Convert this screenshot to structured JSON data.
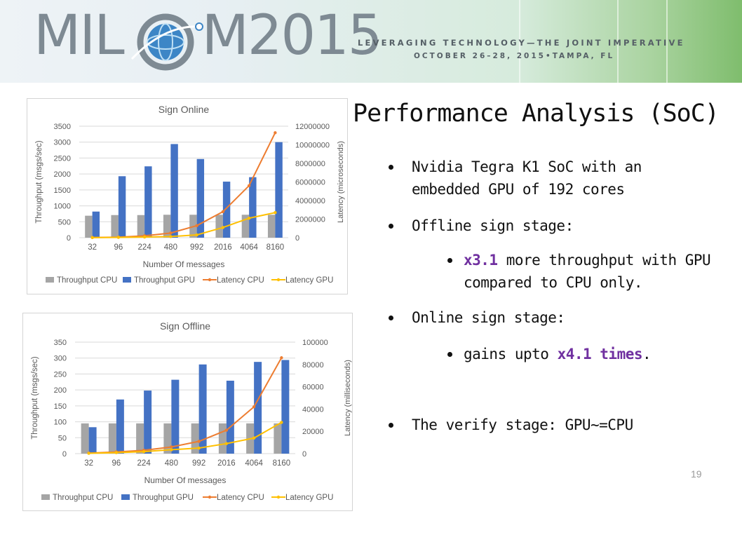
{
  "banner": {
    "logo_text": "MILCOM2015",
    "tagline": "LEVERAGING TECHNOLOGY—THE JOINT IMPERATIVE",
    "dateline": "OCTOBER 26–28, 2015•TAMPA, FL"
  },
  "slide": {
    "title": "Performance Analysis (SoC)",
    "page_number": "19",
    "bullets": [
      {
        "text": "Nvidia Tegra K1 SoC with an embedded GPU of 192 cores",
        "level": 1
      },
      {
        "text": "Offline sign stage:",
        "level": 1
      },
      {
        "hl": "x3.1",
        "text": " more throughput with GPU compared to CPU only.",
        "level": 2
      },
      {
        "text": "Online sign stage:",
        "level": 1
      },
      {
        "pre": "gains upto ",
        "hl": "x4.1 times",
        "post": ".",
        "level": 2
      },
      {
        "text": "The verify stage: GPU~=CPU",
        "level": 1
      }
    ]
  },
  "colors": {
    "throughput_cpu": "#a5a5a5",
    "throughput_gpu": "#4472c4",
    "latency_cpu": "#ed7d31",
    "latency_gpu": "#ffc000",
    "highlight": "#7030a0"
  },
  "chart_data": [
    {
      "type": "bar",
      "title": "Sign Online",
      "xlabel": "Number Of messages",
      "ylabel": "Throughput (msgs/sec)",
      "y2label": "Latency (microseconds)",
      "categories": [
        "32",
        "96",
        "224",
        "480",
        "992",
        "2016",
        "4064",
        "8160"
      ],
      "ylim": [
        0,
        3500
      ],
      "yticks": [
        "0",
        "500",
        "1000",
        "1500",
        "2000",
        "2500",
        "3000",
        "3500"
      ],
      "y2lim": [
        0,
        12000000
      ],
      "y2ticks": [
        "0",
        "2000000",
        "4000000",
        "6000000",
        "8000000",
        "10000000",
        "12000000"
      ],
      "series": [
        {
          "name": "Throughput CPU",
          "kind": "bar",
          "axis": "left",
          "values": [
            690,
            710,
            710,
            720,
            720,
            720,
            720,
            720
          ]
        },
        {
          "name": "Throughput GPU",
          "kind": "bar",
          "axis": "left",
          "values": [
            820,
            1930,
            2240,
            2940,
            2470,
            1760,
            1900,
            3000
          ]
        },
        {
          "name": "Latency CPU",
          "kind": "line",
          "axis": "right",
          "values": [
            20000,
            60000,
            200000,
            500000,
            1300000,
            2800000,
            5600000,
            11300000
          ]
        },
        {
          "name": "Latency GPU",
          "kind": "line",
          "axis": "right",
          "values": [
            10000,
            30000,
            70000,
            120000,
            300000,
            1100000,
            2100000,
            2700000
          ]
        }
      ],
      "legend": "bottom"
    },
    {
      "type": "bar",
      "title": "Sign Offline",
      "xlabel": "Number Of messages",
      "ylabel": "Throughput (msgs/sec)",
      "y2label": "Latency (milliseconds)",
      "categories": [
        "32",
        "96",
        "224",
        "480",
        "992",
        "2016",
        "4064",
        "8160"
      ],
      "ylim": [
        0,
        350
      ],
      "yticks": [
        "0",
        "50",
        "100",
        "150",
        "200",
        "250",
        "300",
        "350"
      ],
      "y2lim": [
        0,
        100000
      ],
      "y2ticks": [
        "0",
        "20000",
        "40000",
        "60000",
        "80000",
        "100000"
      ],
      "series": [
        {
          "name": "Throughput CPU",
          "kind": "bar",
          "axis": "left",
          "values": [
            95,
            95,
            95,
            95,
            95,
            95,
            95,
            95
          ]
        },
        {
          "name": "Throughput GPU",
          "kind": "bar",
          "axis": "left",
          "values": [
            83,
            170,
            198,
            232,
            280,
            229,
            288,
            294
          ]
        },
        {
          "name": "Latency CPU",
          "kind": "line",
          "axis": "right",
          "values": [
            500,
            1500,
            3000,
            6000,
            11000,
            21000,
            42000,
            86000
          ]
        },
        {
          "name": "Latency GPU",
          "kind": "line",
          "axis": "right",
          "values": [
            300,
            900,
            1800,
            3500,
            5000,
            9000,
            14000,
            28000
          ]
        }
      ],
      "legend": "bottom"
    }
  ]
}
